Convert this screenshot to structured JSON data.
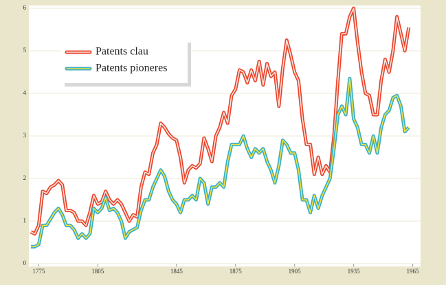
{
  "chart_data": {
    "type": "line",
    "x": [
      1771,
      1773,
      1775,
      1777,
      1779,
      1781,
      1783,
      1785,
      1787,
      1789,
      1791,
      1793,
      1795,
      1797,
      1799,
      1801,
      1803,
      1805,
      1807,
      1809,
      1811,
      1813,
      1815,
      1817,
      1819,
      1821,
      1823,
      1825,
      1827,
      1829,
      1831,
      1833,
      1835,
      1837,
      1839,
      1841,
      1843,
      1845,
      1847,
      1849,
      1851,
      1853,
      1855,
      1857,
      1859,
      1861,
      1863,
      1865,
      1867,
      1869,
      1871,
      1873,
      1875,
      1877,
      1879,
      1881,
      1883,
      1885,
      1887,
      1889,
      1891,
      1893,
      1895,
      1897,
      1899,
      1901,
      1903,
      1905,
      1907,
      1909,
      1911,
      1913,
      1915,
      1917,
      1919,
      1921,
      1923,
      1925,
      1927,
      1929,
      1931,
      1933,
      1935,
      1937,
      1939,
      1941,
      1943,
      1945,
      1947,
      1949,
      1951,
      1953,
      1955,
      1957,
      1959,
      1961,
      1963
    ],
    "series": [
      {
        "name": "Patents clau",
        "color": "#e8452c",
        "highlight": "#fbe3dc",
        "values": [
          0.75,
          0.7,
          0.9,
          1.7,
          1.65,
          1.8,
          1.85,
          1.95,
          1.85,
          1.25,
          1.25,
          1.2,
          1.0,
          1.0,
          0.9,
          1.2,
          1.6,
          1.4,
          1.45,
          1.7,
          1.5,
          1.4,
          1.5,
          1.4,
          1.2,
          1.0,
          1.15,
          1.1,
          1.8,
          2.15,
          2.1,
          2.6,
          2.8,
          3.3,
          3.2,
          3.05,
          2.95,
          2.9,
          2.5,
          1.9,
          2.2,
          2.3,
          2.25,
          2.35,
          2.95,
          2.7,
          2.4,
          3.0,
          3.2,
          3.55,
          3.3,
          3.95,
          4.1,
          4.55,
          4.5,
          4.25,
          4.55,
          4.3,
          4.75,
          4.2,
          4.7,
          4.4,
          4.5,
          3.7,
          4.6,
          5.25,
          4.9,
          4.5,
          4.3,
          3.4,
          2.8,
          2.8,
          2.1,
          2.5,
          2.1,
          2.3,
          2.15,
          3.0,
          4.3,
          5.4,
          5.4,
          5.8,
          6.0,
          5.2,
          4.5,
          4.0,
          3.95,
          3.5,
          3.5,
          4.3,
          4.8,
          4.5,
          5.0,
          5.8,
          5.4,
          5.0,
          5.55
        ]
      },
      {
        "name": "Patents pioneres",
        "color": "#3aaec8",
        "highlight": "#efe43c",
        "values": [
          0.4,
          0.4,
          0.45,
          0.9,
          0.9,
          1.05,
          1.2,
          1.3,
          1.15,
          0.9,
          0.9,
          0.8,
          0.6,
          0.7,
          0.6,
          0.7,
          1.3,
          1.2,
          1.3,
          1.55,
          1.25,
          1.3,
          1.2,
          1.0,
          0.6,
          0.75,
          0.8,
          0.85,
          1.25,
          1.5,
          1.5,
          1.8,
          2.0,
          2.2,
          2.05,
          1.7,
          1.5,
          1.4,
          1.2,
          1.5,
          1.5,
          1.6,
          1.5,
          2.0,
          1.9,
          1.4,
          1.8,
          1.8,
          1.9,
          1.8,
          2.4,
          2.8,
          2.8,
          2.8,
          3.0,
          2.7,
          2.5,
          2.7,
          2.6,
          2.7,
          2.4,
          2.2,
          1.9,
          2.3,
          2.9,
          2.8,
          2.6,
          2.6,
          2.2,
          1.5,
          1.5,
          1.2,
          1.6,
          1.3,
          1.6,
          1.8,
          2.0,
          2.7,
          3.5,
          3.7,
          3.5,
          4.35,
          3.4,
          3.2,
          2.8,
          2.8,
          2.6,
          3.0,
          2.6,
          3.2,
          3.5,
          3.6,
          3.9,
          3.95,
          3.7,
          3.1,
          3.2
        ]
      }
    ],
    "xlim": [
      1770,
      1969
    ],
    "xticks": [
      1775,
      1805,
      1845,
      1875,
      1905,
      1935,
      1965
    ],
    "ylim": [
      0,
      6
    ],
    "yticks": [
      0,
      1,
      2,
      3,
      4,
      5,
      6
    ],
    "grid": true,
    "legend": "upper left"
  }
}
